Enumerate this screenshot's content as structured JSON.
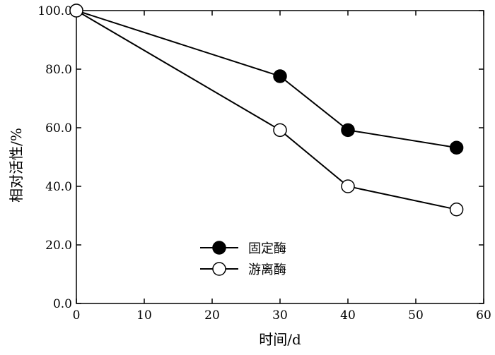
{
  "chart_data": {
    "type": "line",
    "title": "",
    "xlabel": "时间/d",
    "ylabel": "相对活性/%",
    "xlim": [
      0,
      60
    ],
    "ylim": [
      0,
      100
    ],
    "x_ticks": [
      0,
      10,
      20,
      30,
      40,
      50,
      60
    ],
    "x_tick_labels": [
      "0",
      "10",
      "20",
      "30",
      "40",
      "50",
      "60"
    ],
    "y_ticks": [
      0,
      20,
      40,
      60,
      80,
      100
    ],
    "y_tick_labels": [
      "0.0",
      "20.0",
      "40.0",
      "60.0",
      "80.0",
      "100.0"
    ],
    "grid": false,
    "legend_position": "lower-center",
    "series": [
      {
        "name": "固定酶",
        "marker": "filled-circle",
        "color": "#000000",
        "x": [
          0,
          30,
          40,
          56
        ],
        "y": [
          100.0,
          77.6,
          59.2,
          53.2
        ]
      },
      {
        "name": "游离酶",
        "marker": "open-circle",
        "color": "#000000",
        "x": [
          0,
          30,
          40,
          56
        ],
        "y": [
          100.0,
          59.2,
          40.0,
          32.1
        ]
      }
    ]
  }
}
